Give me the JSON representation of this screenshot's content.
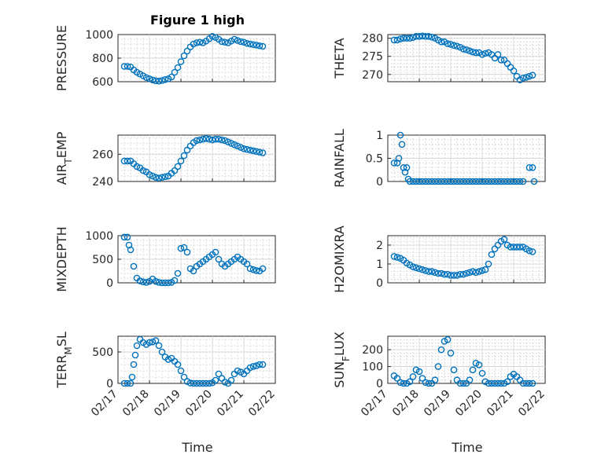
{
  "figure": {
    "title": "Figure 1 high"
  },
  "colors": {
    "marker": "#0072BD",
    "axis": "#262626",
    "grid": "#dcdcdc"
  },
  "x_ticks": [
    "02/17",
    "02/18",
    "02/19",
    "02/20",
    "02/21",
    "02/22"
  ],
  "chart_data": [
    {
      "type": "scatter",
      "ylabel": "PRESSURE",
      "ylim": [
        600,
        1000
      ],
      "yticks": [
        "600",
        "800",
        "1000"
      ],
      "xlim": [
        0,
        5
      ],
      "x": [
        0.2,
        0.3,
        0.4,
        0.5,
        0.6,
        0.7,
        0.8,
        0.9,
        1.0,
        1.1,
        1.2,
        1.3,
        1.4,
        1.5,
        1.6,
        1.7,
        1.8,
        1.9,
        2.0,
        2.1,
        2.2,
        2.3,
        2.4,
        2.5,
        2.6,
        2.7,
        2.8,
        2.9,
        3.0,
        3.1,
        3.2,
        3.3,
        3.4,
        3.5,
        3.6,
        3.7,
        3.8,
        3.9,
        4.0,
        4.1,
        4.2,
        4.3,
        4.4,
        4.5,
        4.6
      ],
      "y": [
        730,
        730,
        725,
        700,
        680,
        665,
        650,
        635,
        625,
        615,
        608,
        605,
        610,
        618,
        625,
        640,
        680,
        720,
        770,
        820,
        860,
        895,
        920,
        930,
        935,
        930,
        945,
        965,
        985,
        975,
        960,
        940,
        935,
        930,
        945,
        960,
        950,
        940,
        935,
        925,
        920,
        915,
        910,
        905,
        900
      ]
    },
    {
      "type": "scatter",
      "ylabel": "THETA",
      "ylim": [
        268,
        281
      ],
      "yticks": [
        "270",
        "275",
        "280"
      ],
      "xlim": [
        0,
        5
      ],
      "x": [
        0.2,
        0.3,
        0.4,
        0.5,
        0.6,
        0.7,
        0.8,
        0.9,
        1.0,
        1.1,
        1.2,
        1.3,
        1.4,
        1.5,
        1.6,
        1.7,
        1.8,
        1.9,
        2.0,
        2.1,
        2.2,
        2.3,
        2.4,
        2.5,
        2.6,
        2.7,
        2.8,
        2.9,
        3.0,
        3.1,
        3.2,
        3.3,
        3.4,
        3.5,
        3.6,
        3.7,
        3.8,
        3.9,
        4.0,
        4.1,
        4.2,
        4.3,
        4.4,
        4.5,
        4.6
      ],
      "y": [
        279.5,
        279.5,
        279.8,
        280.0,
        280.0,
        280.0,
        280.2,
        280.5,
        280.5,
        280.6,
        280.5,
        280.5,
        280.3,
        280.0,
        279.5,
        279.0,
        279.0,
        278.5,
        278.3,
        278.0,
        277.8,
        277.5,
        277.0,
        276.8,
        276.5,
        276.2,
        276.0,
        276.0,
        275.5,
        275.8,
        276.0,
        275.5,
        274.5,
        275.5,
        274.0,
        274.0,
        273.0,
        272.0,
        271.0,
        269.5,
        268.5,
        269.0,
        269.2,
        269.5,
        269.8
      ]
    },
    {
      "type": "scatter",
      "ylabel": "AIR_TEMP",
      "ylim": [
        240,
        274
      ],
      "yticks": [
        "240",
        "260"
      ],
      "xlim": [
        0,
        5
      ],
      "x": [
        0.2,
        0.3,
        0.4,
        0.5,
        0.6,
        0.7,
        0.8,
        0.9,
        1.0,
        1.1,
        1.2,
        1.3,
        1.4,
        1.5,
        1.6,
        1.7,
        1.8,
        1.9,
        2.0,
        2.1,
        2.2,
        2.3,
        2.4,
        2.5,
        2.6,
        2.7,
        2.8,
        2.9,
        3.0,
        3.1,
        3.2,
        3.3,
        3.4,
        3.5,
        3.6,
        3.7,
        3.8,
        3.9,
        4.0,
        4.1,
        4.2,
        4.3,
        4.4,
        4.5,
        4.6
      ],
      "y": [
        255,
        255,
        255,
        253,
        251,
        250,
        248,
        247,
        245,
        244,
        243,
        242.5,
        243,
        243.5,
        244,
        246,
        248,
        251,
        255,
        259,
        263,
        266,
        268.5,
        270,
        270.5,
        271,
        271.5,
        271,
        270.5,
        271,
        271,
        270.5,
        270,
        269,
        268,
        267,
        266,
        265,
        264,
        263.5,
        263,
        262.5,
        262,
        261.5,
        261
      ]
    },
    {
      "type": "scatter",
      "ylabel": "RAINFALL",
      "ylim": [
        0,
        1
      ],
      "yticks": [
        "0",
        "0.5",
        "1"
      ],
      "xlim": [
        0,
        5
      ],
      "x": [
        0.2,
        0.3,
        0.35,
        0.4,
        0.45,
        0.5,
        0.55,
        0.6,
        0.65,
        0.7,
        0.8,
        0.9,
        1.0,
        1.1,
        1.2,
        1.3,
        1.4,
        1.5,
        1.6,
        1.7,
        1.8,
        1.9,
        2.0,
        2.1,
        2.2,
        2.3,
        2.4,
        2.5,
        2.6,
        2.7,
        2.8,
        2.9,
        3.0,
        3.1,
        3.2,
        3.3,
        3.4,
        3.5,
        3.6,
        3.7,
        3.8,
        3.9,
        4.0,
        4.1,
        4.2,
        4.3,
        4.5,
        4.6,
        4.65
      ],
      "y": [
        0.4,
        0.4,
        0.5,
        1.0,
        0.8,
        0.3,
        0.2,
        0.3,
        0.05,
        0,
        0,
        0,
        0,
        0,
        0,
        0,
        0,
        0,
        0,
        0,
        0,
        0,
        0,
        0,
        0,
        0,
        0,
        0,
        0,
        0,
        0,
        0,
        0,
        0,
        0,
        0,
        0,
        0,
        0,
        0,
        0,
        0,
        0,
        0,
        0,
        0,
        0.3,
        0.3,
        0
      ]
    },
    {
      "type": "scatter",
      "ylabel": "MIXDEPTH",
      "ylim": [
        0,
        1000
      ],
      "yticks": [
        "0",
        "500",
        "1000"
      ],
      "xlim": [
        0,
        5
      ],
      "x": [
        0.2,
        0.3,
        0.35,
        0.4,
        0.5,
        0.6,
        0.7,
        0.8,
        0.9,
        1.0,
        1.1,
        1.2,
        1.3,
        1.4,
        1.5,
        1.6,
        1.7,
        1.8,
        1.9,
        2.0,
        2.1,
        2.2,
        2.3,
        2.4,
        2.5,
        2.6,
        2.7,
        2.8,
        2.9,
        3.0,
        3.1,
        3.2,
        3.3,
        3.4,
        3.5,
        3.6,
        3.7,
        3.8,
        3.9,
        4.0,
        4.1,
        4.2,
        4.3,
        4.4,
        4.5,
        4.6
      ],
      "y": [
        970,
        970,
        800,
        700,
        350,
        100,
        40,
        20,
        10,
        30,
        80,
        30,
        10,
        0,
        0,
        0,
        10,
        50,
        200,
        730,
        750,
        650,
        300,
        250,
        350,
        400,
        450,
        500,
        550,
        600,
        650,
        500,
        400,
        350,
        400,
        450,
        500,
        550,
        500,
        450,
        400,
        300,
        280,
        260,
        250,
        300
      ]
    },
    {
      "type": "scatter",
      "ylabel": "H2OMIXRA",
      "ylim": [
        0,
        2.5
      ],
      "yticks": [
        "0",
        "1",
        "2"
      ],
      "xlim": [
        0,
        5
      ],
      "x": [
        0.2,
        0.3,
        0.4,
        0.5,
        0.6,
        0.7,
        0.8,
        0.9,
        1.0,
        1.1,
        1.2,
        1.3,
        1.4,
        1.5,
        1.6,
        1.7,
        1.8,
        1.9,
        2.0,
        2.1,
        2.2,
        2.3,
        2.4,
        2.5,
        2.6,
        2.7,
        2.8,
        2.9,
        3.0,
        3.1,
        3.2,
        3.3,
        3.4,
        3.5,
        3.6,
        3.7,
        3.8,
        3.9,
        4.0,
        4.1,
        4.2,
        4.3,
        4.4,
        4.5,
        4.6
      ],
      "y": [
        1.4,
        1.35,
        1.3,
        1.2,
        1.05,
        0.95,
        0.85,
        0.8,
        0.75,
        0.7,
        0.65,
        0.6,
        0.6,
        0.55,
        0.5,
        0.5,
        0.45,
        0.45,
        0.4,
        0.4,
        0.4,
        0.45,
        0.45,
        0.5,
        0.55,
        0.6,
        0.55,
        0.6,
        0.65,
        0.7,
        1.0,
        1.5,
        1.8,
        2.0,
        2.2,
        2.3,
        2.0,
        1.9,
        1.9,
        1.9,
        1.9,
        1.9,
        1.8,
        1.7,
        1.65
      ]
    },
    {
      "type": "scatter",
      "ylabel": "TERR_MSL",
      "ylim": [
        0,
        750
      ],
      "yticks": [
        "0",
        "500"
      ],
      "xlim": [
        0,
        5
      ],
      "x": [
        0.2,
        0.3,
        0.4,
        0.45,
        0.5,
        0.55,
        0.6,
        0.7,
        0.8,
        0.9,
        1.0,
        1.1,
        1.2,
        1.3,
        1.4,
        1.5,
        1.6,
        1.7,
        1.8,
        1.9,
        2.0,
        2.1,
        2.2,
        2.3,
        2.4,
        2.5,
        2.6,
        2.7,
        2.8,
        2.9,
        3.0,
        3.1,
        3.2,
        3.3,
        3.4,
        3.5,
        3.6,
        3.7,
        3.8,
        3.9,
        4.0,
        4.1,
        4.2,
        4.3,
        4.4,
        4.5,
        4.6
      ],
      "y": [
        0,
        0,
        0,
        100,
        300,
        450,
        600,
        700,
        650,
        620,
        650,
        660,
        680,
        600,
        500,
        420,
        380,
        400,
        350,
        300,
        200,
        100,
        30,
        5,
        0,
        0,
        0,
        0,
        0,
        0,
        10,
        50,
        150,
        80,
        20,
        0,
        50,
        150,
        200,
        180,
        150,
        200,
        250,
        270,
        280,
        300,
        300
      ]
    },
    {
      "type": "scatter",
      "ylabel": "SUN_FLUX",
      "ylim": [
        0,
        280
      ],
      "yticks": [
        "0",
        "100",
        "200"
      ],
      "xlim": [
        0,
        5
      ],
      "x": [
        0.2,
        0.3,
        0.4,
        0.5,
        0.6,
        0.7,
        0.8,
        0.9,
        1.0,
        1.1,
        1.2,
        1.3,
        1.4,
        1.5,
        1.6,
        1.7,
        1.8,
        1.9,
        2.0,
        2.1,
        2.2,
        2.3,
        2.4,
        2.5,
        2.6,
        2.7,
        2.8,
        2.9,
        3.0,
        3.1,
        3.2,
        3.3,
        3.4,
        3.5,
        3.6,
        3.7,
        3.8,
        3.9,
        4.0,
        4.1,
        4.2,
        4.3,
        4.4,
        4.5,
        4.6
      ],
      "y": [
        45,
        30,
        5,
        0,
        0,
        10,
        40,
        80,
        70,
        30,
        5,
        0,
        0,
        20,
        100,
        200,
        250,
        260,
        180,
        80,
        20,
        0,
        0,
        0,
        20,
        80,
        120,
        110,
        60,
        10,
        0,
        0,
        0,
        0,
        0,
        0,
        10,
        40,
        55,
        40,
        20,
        0,
        0,
        0,
        0
      ]
    }
  ],
  "xlabel": "Time"
}
